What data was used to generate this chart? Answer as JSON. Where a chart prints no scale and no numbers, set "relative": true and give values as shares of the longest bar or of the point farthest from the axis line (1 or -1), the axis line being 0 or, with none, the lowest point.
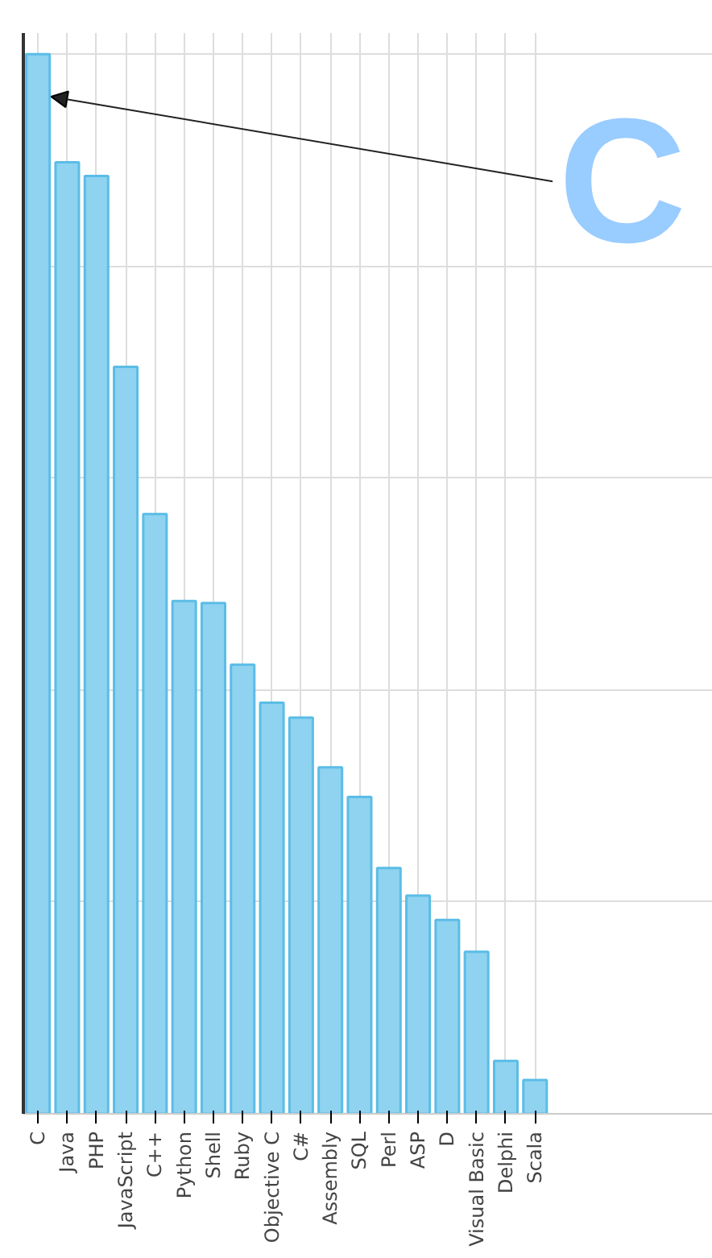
{
  "chart_data": {
    "type": "bar",
    "relative": true,
    "grid": true,
    "color": "#8fd3f0",
    "categories": [
      "C",
      "Java",
      "PHP",
      "JavaScript",
      "C++",
      "Python",
      "Shell",
      "Ruby",
      "Objective C",
      "C#",
      "Assembly",
      "SQL",
      "Perl",
      "ASP",
      "D",
      "Visual Basic",
      "Delphi",
      "Scala"
    ],
    "values": [
      1,
      0.898,
      0.885,
      0.705,
      0.566,
      0.484,
      0.482,
      0.424,
      0.388,
      0.374,
      0.327,
      0.299,
      0.232,
      0.206,
      0.183,
      0.153,
      0.05,
      0.032
    ],
    "annotations": [
      {
        "text": "C",
        "x": "C",
        "y": 1
      }
    ]
  }
}
